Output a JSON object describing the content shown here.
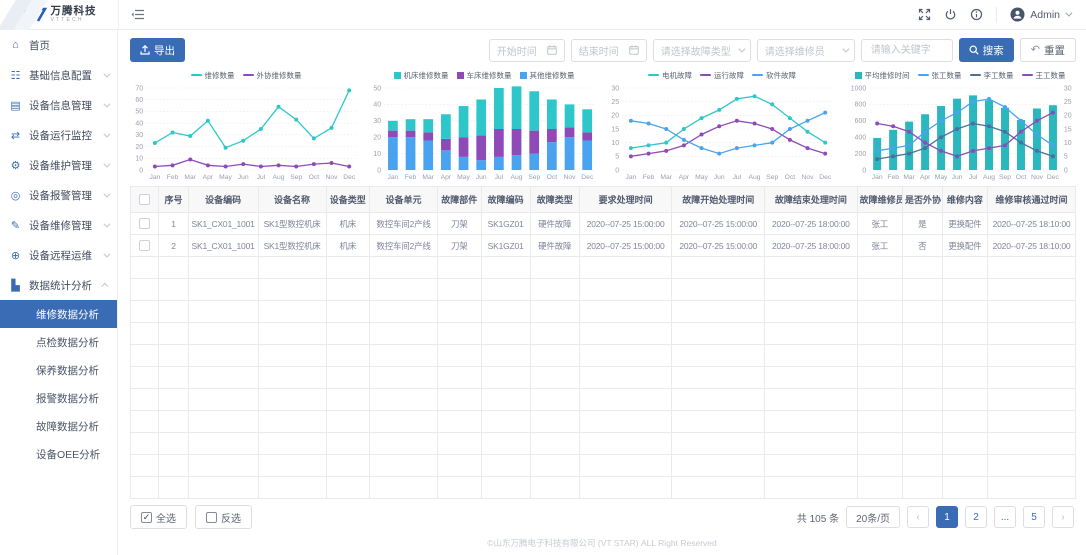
{
  "header": {
    "logo_text": "万腾科技",
    "logo_sub": "VTTECH",
    "user": "Admin"
  },
  "sidebar": {
    "items": [
      {
        "name": "home",
        "label": "首页",
        "icon": "home-icon"
      },
      {
        "name": "basic-config",
        "label": "基础信息配置",
        "icon": "config-icon",
        "chevron": "down"
      },
      {
        "name": "device-info",
        "label": "设备信息管理",
        "icon": "device-info-icon",
        "chevron": "down"
      },
      {
        "name": "device-monitor",
        "label": "设备运行监控",
        "icon": "monitor-icon",
        "chevron": "down"
      },
      {
        "name": "device-maintenance",
        "label": "设备维护管理",
        "icon": "maintenance-icon",
        "chevron": "down"
      },
      {
        "name": "device-alarm",
        "label": "设备报警管理",
        "icon": "alarm-icon",
        "chevron": "down"
      },
      {
        "name": "device-repair",
        "label": "设备维修管理",
        "icon": "repair-icon",
        "chevron": "down"
      },
      {
        "name": "remote-ops",
        "label": "设备远程运维",
        "icon": "remote-icon",
        "chevron": "down"
      },
      {
        "name": "data-stats",
        "label": "数据统计分析",
        "icon": "stats-icon",
        "chevron": "up",
        "children": [
          {
            "name": "repair-analysis",
            "label": "维修数据分析",
            "active": true
          },
          {
            "name": "inspection-analysis",
            "label": "点检数据分析"
          },
          {
            "name": "upkeep-analysis",
            "label": "保养数据分析"
          },
          {
            "name": "alarm-analysis",
            "label": "报警数据分析"
          },
          {
            "name": "fault-analysis",
            "label": "故障数据分析"
          },
          {
            "name": "oee-analysis",
            "label": "设备OEE分析"
          }
        ]
      }
    ]
  },
  "toolbar": {
    "export_label": "导出",
    "search_label": "搜索",
    "reset_label": "重置",
    "filters": [
      {
        "name": "start-time-input",
        "placeholder": "开始时间",
        "kind": "date"
      },
      {
        "name": "end-time-input",
        "placeholder": "结束时间",
        "kind": "date"
      },
      {
        "name": "fault-type-select",
        "placeholder": "请选择故障类型",
        "kind": "select"
      },
      {
        "name": "repairman-select",
        "placeholder": "请选择维修员",
        "kind": "select"
      },
      {
        "name": "keyword-input",
        "placeholder": "请输入关键字",
        "kind": "text"
      }
    ]
  },
  "chart_data": [
    {
      "name": "repair-count-trend-chart",
      "type": "line",
      "categories": [
        "Jan",
        "Feb",
        "Mar",
        "Apr",
        "May",
        "Jun",
        "Jul",
        "Aug",
        "Sep",
        "Oct",
        "Nov",
        "Dec"
      ],
      "ylim": [
        0,
        70
      ],
      "ytick": 10,
      "series": [
        {
          "name": "维修数量",
          "color": "#2ec7c9",
          "values": [
            23,
            32,
            29,
            42,
            19,
            25,
            35,
            54,
            43,
            27,
            36,
            68
          ]
        },
        {
          "name": "外协维修数量",
          "color": "#8e4bb8",
          "values": [
            3,
            4,
            9,
            4,
            3,
            5,
            3,
            4,
            3,
            5,
            6,
            3
          ]
        }
      ]
    },
    {
      "name": "repair-by-machine-type-chart",
      "type": "stacked_bar",
      "categories": [
        "Jan",
        "Feb",
        "Mar",
        "Apr",
        "May",
        "Jun",
        "Jul",
        "Aug",
        "Sep",
        "Oct",
        "Nov",
        "Dec"
      ],
      "ylim": [
        0,
        50
      ],
      "ytick": 10,
      "series": [
        {
          "name": "机床维修数量",
          "color": "#2ec7c9",
          "values": [
            6,
            7,
            8,
            15,
            19,
            22,
            25,
            26,
            24,
            18,
            14,
            14
          ]
        },
        {
          "name": "车床维修数量",
          "color": "#8e4bb8",
          "values": [
            4,
            4,
            5,
            7,
            12,
            15,
            17,
            16,
            14,
            8,
            6,
            5
          ]
        },
        {
          "name": "其他维修数量",
          "color": "#4aa3f0",
          "values": [
            20,
            20,
            18,
            12,
            8,
            6,
            8,
            9,
            10,
            17,
            20,
            18
          ]
        }
      ]
    },
    {
      "name": "fault-type-trend-chart",
      "type": "line",
      "categories": [
        "Jan",
        "Feb",
        "Mar",
        "Apr",
        "May",
        "Jun",
        "Jul",
        "Aug",
        "Sep",
        "Oct",
        "Nov",
        "Dec"
      ],
      "ylim": [
        0,
        30
      ],
      "ytick": 5,
      "series": [
        {
          "name": "电机故障",
          "color": "#2ec7c9",
          "values": [
            8,
            9,
            10,
            15,
            19,
            22,
            26,
            27,
            24,
            19,
            14,
            10
          ]
        },
        {
          "name": "运行故障",
          "color": "#8e4bb8",
          "values": [
            5,
            6,
            7,
            9,
            13,
            16,
            18,
            17,
            15,
            11,
            8,
            6
          ]
        },
        {
          "name": "软件故障",
          "color": "#4aa3f0",
          "values": [
            18,
            17,
            15,
            11,
            8,
            6,
            8,
            9,
            10,
            15,
            18,
            21
          ]
        }
      ]
    },
    {
      "name": "avg-repair-time-worker-chart",
      "type": "bar_line",
      "categories": [
        "Jan",
        "Feb",
        "Mar",
        "Apr",
        "May",
        "Jun",
        "Jul",
        "Aug",
        "Sep",
        "Oct",
        "Nov",
        "Dec"
      ],
      "ylim": [
        0,
        1000
      ],
      "ytick": 200,
      "ylim_right": [
        0,
        30
      ],
      "ytick_right": 5,
      "series": [
        {
          "name": "平均维修时间",
          "kind": "bar",
          "axis": "left",
          "color": "#2bb7be",
          "values": [
            390,
            490,
            590,
            680,
            780,
            870,
            910,
            850,
            760,
            610,
            750,
            790
          ]
        },
        {
          "name": "张工数量",
          "kind": "line",
          "axis": "right",
          "color": "#4aa3f0",
          "values": [
            7,
            8,
            9,
            14,
            18,
            21,
            25,
            26,
            23,
            18,
            13,
            9
          ]
        },
        {
          "name": "李工数量",
          "kind": "line",
          "axis": "right",
          "color": "#4d6f9e",
          "values": [
            4,
            5,
            6,
            8,
            12,
            15,
            17,
            16,
            14,
            10,
            7,
            5
          ]
        },
        {
          "name": "王工数量",
          "kind": "line",
          "axis": "right",
          "color": "#8e4bb8",
          "values": [
            17,
            16,
            14,
            10,
            7,
            5,
            7,
            8,
            9,
            14,
            18,
            21
          ]
        }
      ]
    }
  ],
  "table": {
    "columns": [
      "序号",
      "设备编码",
      "设备名称",
      "设备类型",
      "设备单元",
      "故障部件",
      "故障编码",
      "故障类型",
      "要求处理时间",
      "故障开始处理时间",
      "故障结束处理时间",
      "故障维修员",
      "是否外协",
      "维修内容",
      "维修审核通过时间"
    ],
    "rows": [
      [
        "1",
        "SK1_CX01_1001",
        "SK1型数控机床",
        "机床",
        "数控车间2产线",
        "刀架",
        "SK1GZ01",
        "硬件故障",
        "2020--07-25 15:00:00",
        "2020--07-25 15:00:00",
        "2020--07-25 18:00:00",
        "张工",
        "是",
        "更换配件",
        "2020--07-25 18:10:00"
      ],
      [
        "2",
        "SK1_CX01_1001",
        "SK1型数控机床",
        "机床",
        "数控车间2产线",
        "刀架",
        "SK1GZ01",
        "硬件故障",
        "2020--07-25 15:00:00",
        "2020--07-25 15:00:00",
        "2020--07-25 18:00:00",
        "张工",
        "否",
        "更换配件",
        "2020--07-25 18:10:00"
      ]
    ],
    "empty_row_count": 11
  },
  "footer": {
    "select_all": "全选",
    "invert": "反选",
    "total": "共 105 条",
    "page_size": "20条/页",
    "prev": "‹",
    "next": "›",
    "pages": [
      {
        "label": "1",
        "active": true
      },
      {
        "label": "2"
      },
      {
        "label": "..."
      },
      {
        "label": "5"
      }
    ]
  },
  "copyright": "©山东万腾电子科技有限公司 (VT STAR) ALL Right Reserved"
}
